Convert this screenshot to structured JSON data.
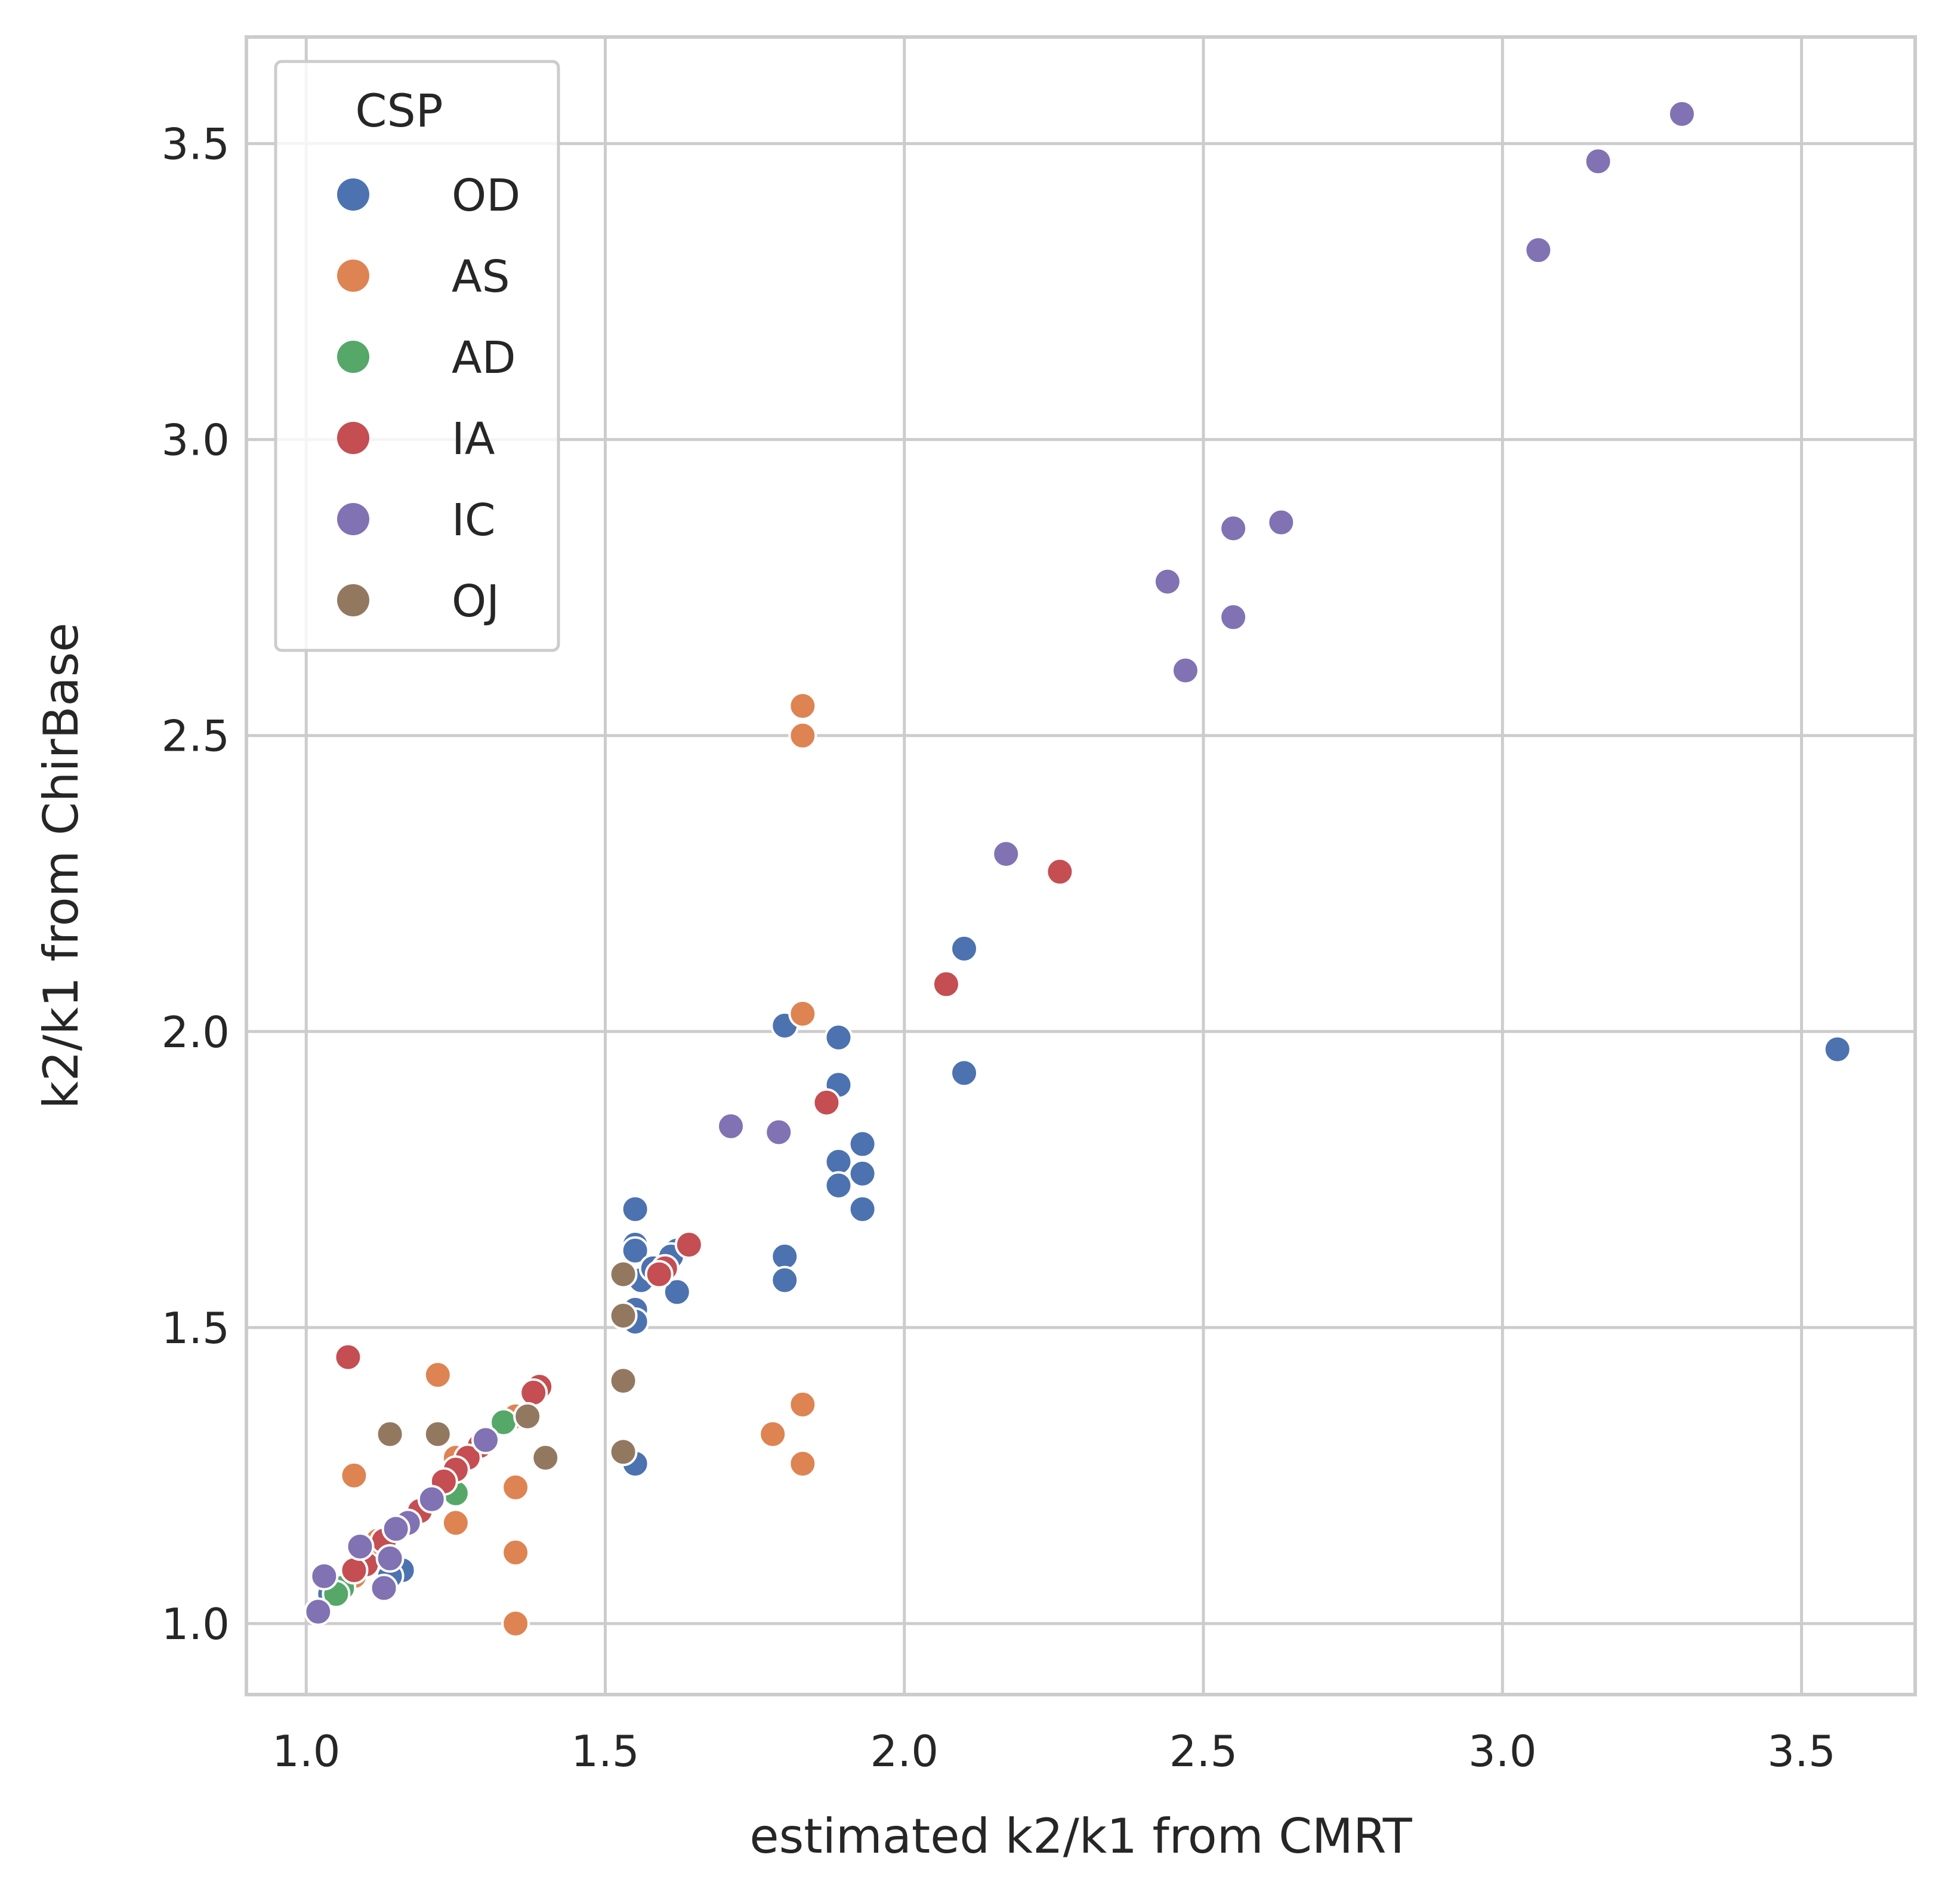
{
  "chart_data": {
    "type": "scatter",
    "xlabel": "estimated k2/k1 from CMRT",
    "ylabel": "k2/k1 from ChirBase",
    "xlim": [
      0.9,
      3.69
    ],
    "ylim": [
      0.88,
      3.68
    ],
    "xticks": [
      1.0,
      1.5,
      2.0,
      2.5,
      3.0,
      3.5
    ],
    "yticks": [
      1.0,
      1.5,
      2.0,
      2.5,
      3.0,
      3.5
    ],
    "xtick_labels": [
      "1.0",
      "1.5",
      "2.0",
      "2.5",
      "3.0",
      "3.5"
    ],
    "ytick_labels": [
      "1.0",
      "1.5",
      "2.0",
      "2.5",
      "3.0",
      "3.5"
    ],
    "grid": true,
    "legend": {
      "title": "CSP",
      "position": "top-left"
    },
    "series": [
      {
        "name": "OD",
        "color": "#4c72b0",
        "points": [
          [
            1.55,
            1.7
          ],
          [
            1.55,
            1.64
          ],
          [
            1.55,
            1.63
          ],
          [
            1.56,
            1.58
          ],
          [
            1.55,
            1.53
          ],
          [
            1.55,
            1.51
          ],
          [
            1.62,
            1.63
          ],
          [
            1.61,
            1.62
          ],
          [
            1.62,
            1.56
          ],
          [
            1.58,
            1.6
          ],
          [
            1.55,
            1.27
          ],
          [
            1.8,
            2.01
          ],
          [
            1.8,
            1.62
          ],
          [
            1.8,
            1.58
          ],
          [
            1.89,
            1.99
          ],
          [
            1.89,
            1.91
          ],
          [
            1.89,
            1.78
          ],
          [
            1.89,
            1.74
          ],
          [
            1.93,
            1.81
          ],
          [
            1.93,
            1.76
          ],
          [
            1.93,
            1.7
          ],
          [
            2.1,
            2.14
          ],
          [
            2.1,
            1.93
          ],
          [
            3.56,
            1.97
          ],
          [
            1.15,
            1.16
          ],
          [
            1.16,
            1.09
          ],
          [
            1.14,
            1.08
          ],
          [
            1.06,
            1.06
          ],
          [
            1.04,
            1.05
          ]
        ]
      },
      {
        "name": "AS",
        "color": "#dd8452",
        "points": [
          [
            1.83,
            2.55
          ],
          [
            1.83,
            2.5
          ],
          [
            1.83,
            2.03
          ],
          [
            1.83,
            1.37
          ],
          [
            1.78,
            1.32
          ],
          [
            1.83,
            1.27
          ],
          [
            1.22,
            1.42
          ],
          [
            1.08,
            1.25
          ],
          [
            1.35,
            1.23
          ],
          [
            1.25,
            1.17
          ],
          [
            1.35,
            1.12
          ],
          [
            1.35,
            1.0
          ],
          [
            1.25,
            1.28
          ],
          [
            1.33,
            1.34
          ],
          [
            1.35,
            1.35
          ],
          [
            1.12,
            1.14
          ],
          [
            1.08,
            1.08
          ],
          [
            1.1,
            1.11
          ]
        ]
      },
      {
        "name": "AD",
        "color": "#55a868",
        "points": [
          [
            1.33,
            1.34
          ],
          [
            1.25,
            1.22
          ],
          [
            1.06,
            1.06
          ],
          [
            1.05,
            1.05
          ]
        ]
      },
      {
        "name": "IA",
        "color": "#c44e52",
        "points": [
          [
            2.26,
            2.27
          ],
          [
            2.07,
            2.08
          ],
          [
            1.87,
            1.88
          ],
          [
            1.64,
            1.64
          ],
          [
            1.6,
            1.6
          ],
          [
            1.59,
            1.59
          ],
          [
            1.07,
            1.45
          ],
          [
            1.39,
            1.4
          ],
          [
            1.38,
            1.39
          ],
          [
            1.29,
            1.3
          ],
          [
            1.27,
            1.28
          ],
          [
            1.25,
            1.26
          ],
          [
            1.23,
            1.24
          ],
          [
            1.19,
            1.19
          ],
          [
            1.15,
            1.16
          ],
          [
            1.13,
            1.14
          ],
          [
            1.1,
            1.1
          ],
          [
            1.08,
            1.09
          ]
        ]
      },
      {
        "name": "IC",
        "color": "#8172b3",
        "points": [
          [
            3.3,
            3.55
          ],
          [
            3.16,
            3.47
          ],
          [
            3.06,
            3.32
          ],
          [
            2.63,
            2.86
          ],
          [
            2.55,
            2.85
          ],
          [
            2.44,
            2.76
          ],
          [
            2.55,
            2.7
          ],
          [
            2.47,
            2.61
          ],
          [
            2.17,
            2.3
          ],
          [
            1.71,
            1.84
          ],
          [
            1.79,
            1.83
          ],
          [
            1.3,
            1.31
          ],
          [
            1.21,
            1.21
          ],
          [
            1.17,
            1.17
          ],
          [
            1.15,
            1.16
          ],
          [
            1.09,
            1.13
          ],
          [
            1.14,
            1.11
          ],
          [
            1.13,
            1.06
          ],
          [
            1.03,
            1.08
          ],
          [
            1.02,
            1.02
          ]
        ]
      },
      {
        "name": "OJ",
        "color": "#937860",
        "points": [
          [
            1.53,
            1.59
          ],
          [
            1.53,
            1.52
          ],
          [
            1.53,
            1.41
          ],
          [
            1.53,
            1.29
          ],
          [
            1.37,
            1.35
          ],
          [
            1.4,
            1.28
          ],
          [
            1.22,
            1.32
          ],
          [
            1.14,
            1.32
          ]
        ]
      }
    ]
  }
}
